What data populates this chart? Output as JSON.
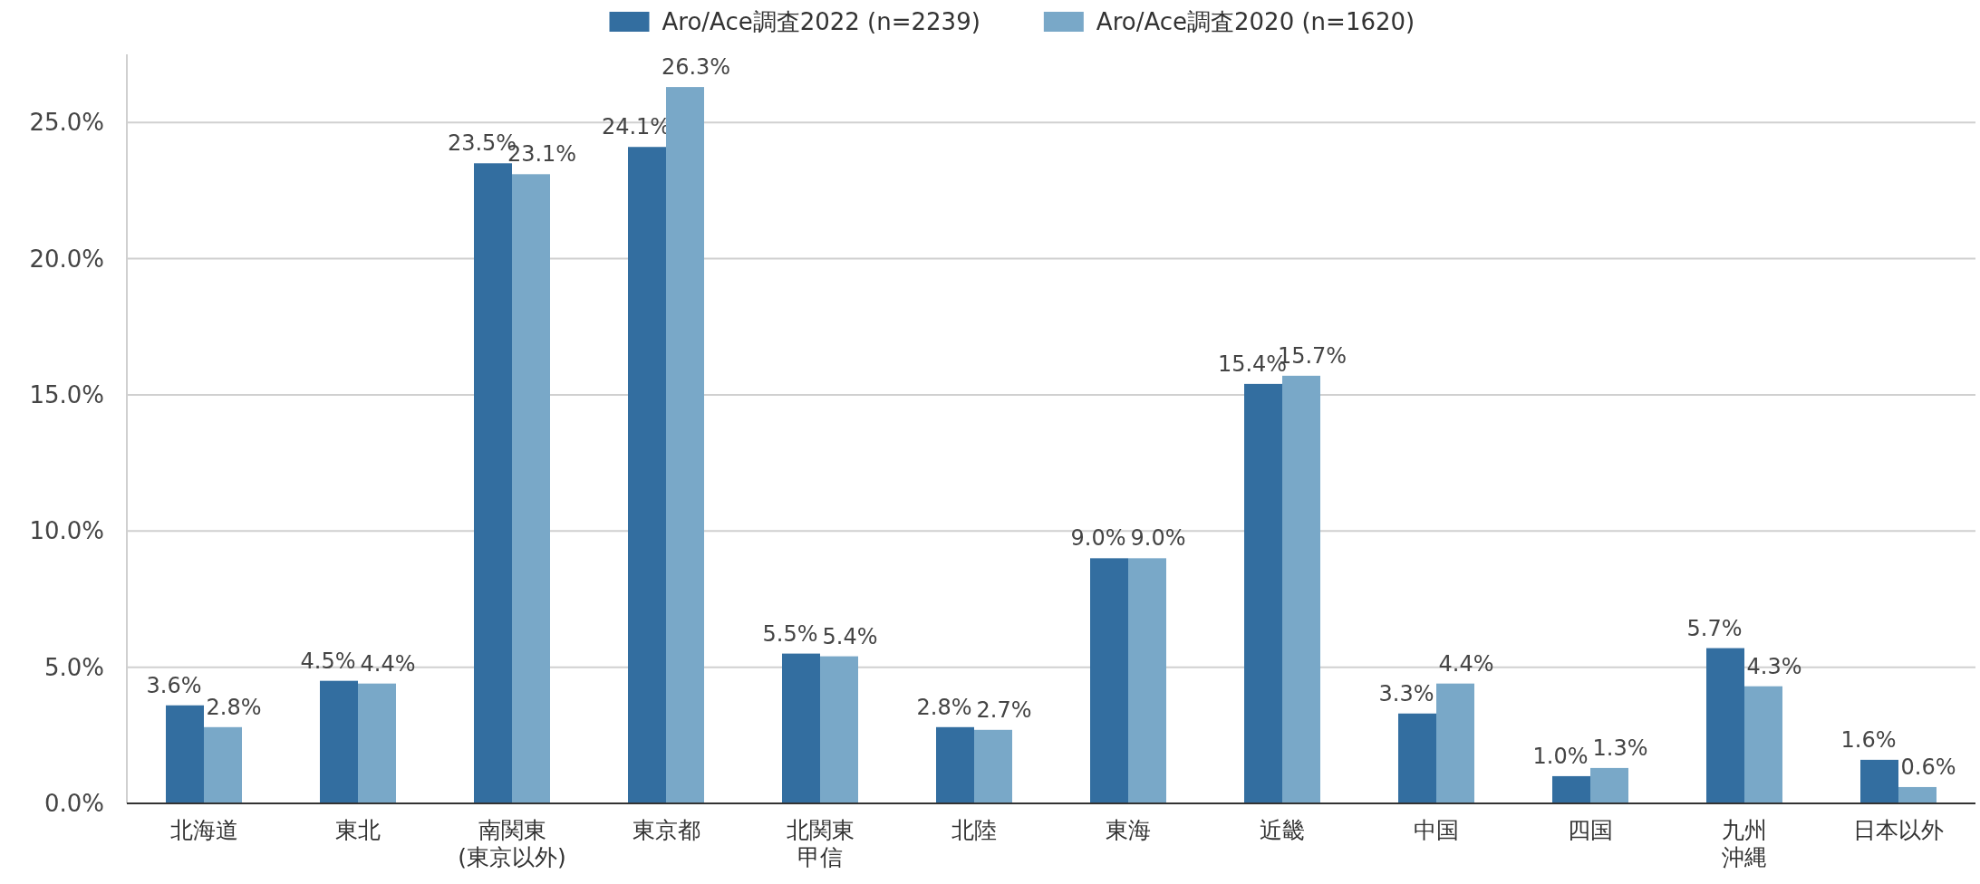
{
  "chart_data": {
    "type": "bar",
    "categories": [
      "北海道",
      "東北",
      "南関東\n(東京以外)",
      "東京都",
      "北関東甲信",
      "北陸",
      "東海",
      "近畿",
      "中国",
      "四国",
      "九州沖縄",
      "日本以外"
    ],
    "series": [
      {
        "name": "Aro/Ace調査2022 (n=2239)",
        "color": "#336ea0",
        "values": [
          3.6,
          4.5,
          23.5,
          24.1,
          5.5,
          2.8,
          9.0,
          15.4,
          3.3,
          1.0,
          5.7,
          1.6
        ],
        "value_labels": [
          "3.6%",
          "4.5%",
          "23.5%",
          "24.1%",
          "5.5%",
          "2.8%",
          "9.0%",
          "15.4%",
          "3.3%",
          "1.0%",
          "5.7%",
          "1.6%"
        ]
      },
      {
        "name": "Aro/Ace調査2020 (n=1620)",
        "color": "#79a8c8",
        "values": [
          2.8,
          4.4,
          23.1,
          26.3,
          5.4,
          2.7,
          9.0,
          15.7,
          4.4,
          1.3,
          4.3,
          0.6
        ],
        "value_labels": [
          "2.8%",
          "4.4%",
          "23.1%",
          "26.3%",
          "5.4%",
          "2.7%",
          "9.0%",
          "15.7%",
          "4.4%",
          "1.3%",
          "4.3%",
          "0.6%"
        ]
      }
    ],
    "yticks": [
      {
        "value": 0,
        "label": "0.0%"
      },
      {
        "value": 5,
        "label": "5.0%"
      },
      {
        "value": 10,
        "label": "10.0%"
      },
      {
        "value": 15,
        "label": "15.0%"
      },
      {
        "value": 20,
        "label": "20.0%"
      },
      {
        "value": 25,
        "label": "25.0%"
      }
    ],
    "ylim": [
      0,
      27.5
    ],
    "grid": "y",
    "legend": "top"
  }
}
